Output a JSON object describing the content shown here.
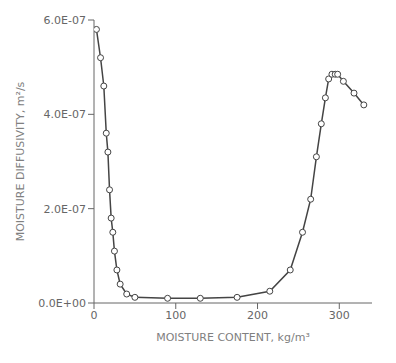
{
  "chart_data": {
    "type": "line",
    "x": [
      3,
      8,
      12,
      15,
      17,
      19,
      21,
      23,
      25,
      28,
      32,
      40,
      50,
      90,
      130,
      175,
      215,
      240,
      255,
      265,
      272,
      278,
      283,
      287,
      291,
      295,
      298,
      305,
      318,
      330
    ],
    "values": [
      5.8e-07,
      5.2e-07,
      4.6e-07,
      3.6e-07,
      3.2e-07,
      2.4e-07,
      1.8e-07,
      1.5e-07,
      1.1e-07,
      7e-08,
      4e-08,
      1.9e-08,
      1.2e-08,
      1e-08,
      1e-08,
      1.2e-08,
      2.5e-08,
      7e-08,
      1.5e-07,
      2.2e-07,
      3.1e-07,
      3.8e-07,
      4.35e-07,
      4.75e-07,
      4.85e-07,
      4.85e-07,
      4.85e-07,
      4.7e-07,
      4.45e-07,
      4.2e-07
    ],
    "color": "#444444",
    "marker": "circle",
    "xlabel": "MOISTURE CONTENT,   kg/m³",
    "ylabel": "MOISTURE DIFFUSIVITY,  m²/s",
    "xlim": [
      0,
      340
    ],
    "ylim": [
      0.0,
      6e-07
    ],
    "xticks": [
      0,
      100,
      200,
      300
    ],
    "yticks": [
      {
        "value": 0.0,
        "label": "0.0E+00"
      },
      {
        "value": 2e-07,
        "label": "2.0E-07"
      },
      {
        "value": 4e-07,
        "label": "4.0E-07"
      },
      {
        "value": 6e-07,
        "label": "6.0E-07"
      }
    ],
    "grid": false
  }
}
